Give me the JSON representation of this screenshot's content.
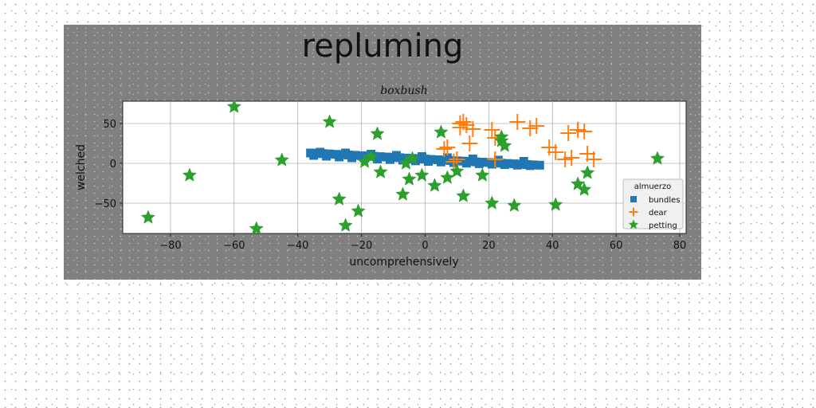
{
  "chart_data": {
    "type": "scatter",
    "title": "repluming",
    "subtitle": "boxbush",
    "xlabel": "uncomprehensively",
    "ylabel": "welched",
    "xlim": [
      -95,
      82
    ],
    "ylim": [
      -88,
      78
    ],
    "xticks": [
      -80,
      -60,
      -40,
      -20,
      0,
      20,
      40,
      60,
      80
    ],
    "yticks": [
      -50,
      0,
      50
    ],
    "grid": true,
    "legend": {
      "title": "almuerzo",
      "position": "lower-right"
    },
    "series": [
      {
        "name": "bundles",
        "marker": "square",
        "color": "#1f77b4",
        "x": [
          -36,
          -34,
          -32,
          -30,
          -28,
          -26,
          -24,
          -22,
          -20,
          -18,
          -16,
          -14,
          -12,
          -10,
          -8,
          -6,
          -4,
          -2,
          0,
          2,
          4,
          6,
          8,
          10,
          12,
          14,
          16,
          18,
          20,
          22,
          24,
          26,
          28,
          30,
          32,
          34,
          36,
          -35,
          -31,
          -27,
          -23,
          -19,
          -15,
          -11,
          -7,
          -3,
          1,
          5,
          9,
          13,
          17,
          21,
          25,
          29,
          33,
          -33,
          -25,
          -17,
          -9,
          -1,
          7,
          15,
          23,
          31
        ],
        "y": [
          13,
          12.5,
          12.2,
          11.8,
          11.3,
          10.9,
          10.5,
          10.1,
          9.6,
          9.2,
          8.8,
          8.4,
          7.9,
          7.5,
          7.1,
          6.6,
          6.2,
          5.8,
          5.4,
          4.9,
          4.5,
          4.1,
          3.6,
          3.2,
          2.8,
          2.4,
          1.9,
          1.5,
          1.1,
          0.6,
          0.2,
          -0.2,
          -0.6,
          -1.1,
          -1.5,
          -1.9,
          -2.3,
          10,
          9,
          8,
          7,
          6.5,
          5.5,
          4.8,
          4,
          3.2,
          2.5,
          1.8,
          1,
          0.3,
          -0.4,
          -1,
          -1.6,
          -2.2,
          -2.8,
          14,
          13,
          11.5,
          10,
          8.5,
          7,
          5.5,
          4,
          2.5
        ]
      },
      {
        "name": "dear",
        "marker": "plus",
        "color": "#ff7f0e",
        "x": [
          11,
          12,
          11,
          13,
          15,
          14,
          10,
          9,
          7,
          6,
          21,
          22,
          22,
          29,
          33,
          35,
          39,
          41,
          44,
          46,
          48,
          50,
          51,
          53,
          48,
          45
        ],
        "y": [
          50,
          52,
          45,
          48,
          43,
          25,
          5,
          2,
          20,
          18,
          42,
          32,
          5,
          52,
          44,
          47,
          20,
          14,
          5,
          7,
          42,
          40,
          12,
          5,
          42,
          38
        ],
        "size": 20
      },
      {
        "name": "petting",
        "marker": "star",
        "color": "#2ca02c",
        "x": [
          -87,
          -74,
          -60,
          -53,
          -45,
          -30,
          -27,
          -25,
          -21,
          -19,
          -17,
          -15,
          -14,
          -7,
          -6,
          -5,
          -4,
          -1,
          3,
          5,
          7,
          10,
          12,
          18,
          21,
          24,
          25,
          24,
          28,
          41,
          48,
          50,
          51,
          73
        ],
        "y": [
          -68,
          -15,
          71,
          -82,
          4,
          52,
          -45,
          -78,
          -60,
          2,
          8,
          37,
          -11,
          -39,
          0,
          -20,
          6,
          -15,
          -28,
          39,
          -18,
          -10,
          -41,
          -15,
          -50,
          33,
          22,
          28,
          -53,
          -52,
          -26,
          -33,
          -12,
          6
        ]
      }
    ]
  }
}
